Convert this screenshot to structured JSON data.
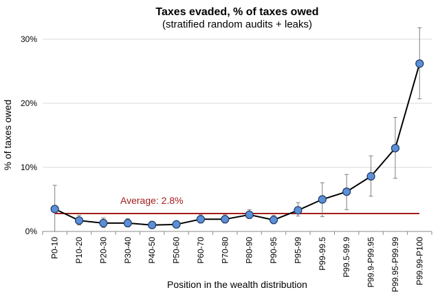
{
  "chart_data": {
    "type": "line",
    "title": "Taxes evaded, % of taxes owed",
    "subtitle": "(stratified random audits + leaks)",
    "xlabel": "Position in the wealth distribution",
    "ylabel": "% of taxes owed",
    "ylim": [
      0,
      30
    ],
    "yticks": [
      0,
      10,
      20,
      30
    ],
    "ytick_labels": [
      "0%",
      "10%",
      "20%",
      "30%"
    ],
    "grid": "horizontal",
    "categories": [
      "P0-10",
      "P10-20",
      "P20-30",
      "P30-40",
      "P40-50",
      "P50-60",
      "P60-70",
      "P70-80",
      "P80-90",
      "P90-95",
      "P95-99",
      "P99-99.5",
      "P99.5-99.9",
      "P99.9-P99.95",
      "P99.95-P99.99",
      "P99.99-P100"
    ],
    "series": [
      {
        "values": [
          3.5,
          1.7,
          1.3,
          1.3,
          1.0,
          1.1,
          1.9,
          1.9,
          2.6,
          1.8,
          3.3,
          5.0,
          6.2,
          8.6,
          13.0,
          26.2
        ],
        "error_low": [
          0.0,
          1.0,
          0.6,
          0.7,
          0.5,
          0.6,
          1.3,
          1.3,
          2.0,
          1.2,
          2.4,
          2.3,
          3.4,
          5.5,
          8.3,
          20.7
        ],
        "error_high": [
          7.2,
          2.5,
          2.1,
          2.0,
          1.6,
          1.6,
          2.6,
          2.6,
          3.4,
          2.5,
          4.5,
          7.6,
          8.9,
          11.8,
          17.8,
          31.8
        ],
        "color": "#000000",
        "marker_color": "#5b8fd6"
      }
    ],
    "reference_line": {
      "label": "Average: 2.8%",
      "value": 2.8,
      "color": "#a31c1c"
    }
  }
}
